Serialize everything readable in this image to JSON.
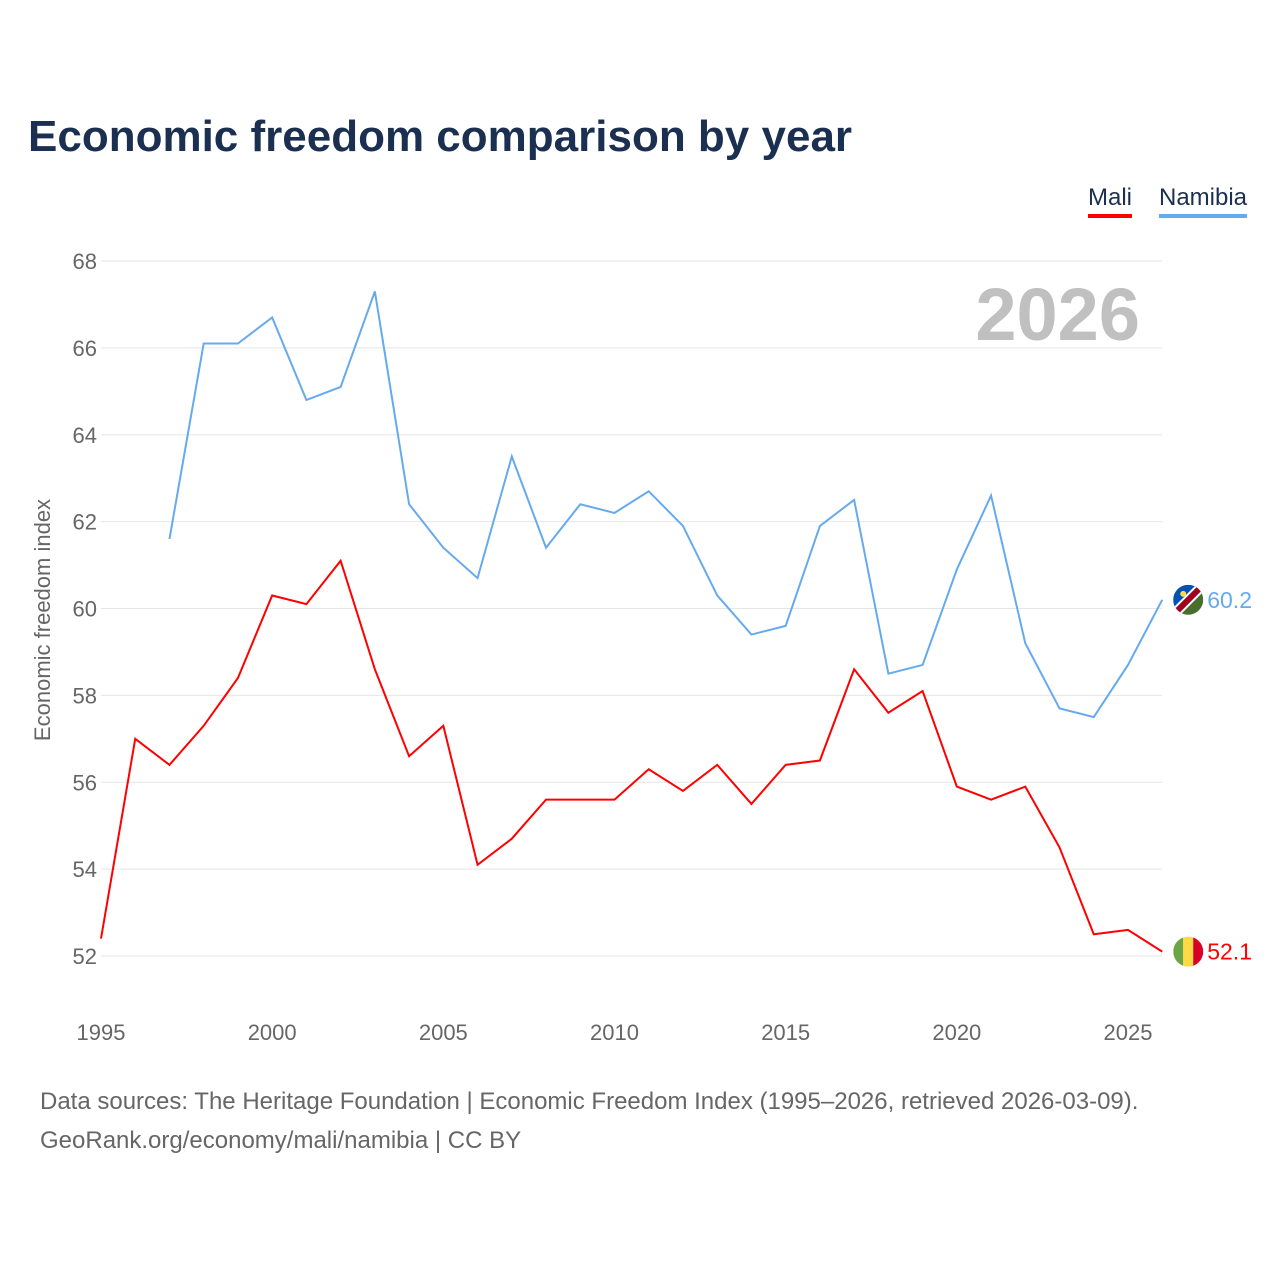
{
  "chart_data": {
    "type": "line",
    "title": "Economic freedom comparison by year",
    "ylabel": "Economic freedom index",
    "xlabel": "",
    "ylim": [
      52,
      68
    ],
    "xlim": [
      1995,
      2026
    ],
    "yticks": [
      52,
      54,
      56,
      58,
      60,
      62,
      64,
      66,
      68
    ],
    "xticks": [
      1995,
      2000,
      2005,
      2010,
      2015,
      2020,
      2025
    ],
    "grid": true,
    "legend_placement": "top-right",
    "year_label": "2026",
    "series": [
      {
        "name": "Mali",
        "color": "#ff0000",
        "start": 1995,
        "end_label": "52.1",
        "values": [
          52.4,
          57.0,
          56.4,
          57.3,
          58.4,
          60.3,
          60.1,
          61.1,
          58.6,
          56.6,
          57.3,
          54.1,
          54.7,
          55.6,
          55.6,
          55.6,
          56.3,
          55.8,
          56.4,
          55.5,
          56.4,
          56.5,
          58.6,
          57.6,
          58.1,
          55.9,
          55.6,
          55.9,
          54.5,
          52.5,
          52.6,
          52.1
        ]
      },
      {
        "name": "Namibia",
        "color": "#66aaee",
        "start": 1997,
        "end_label": "60.2",
        "values": [
          61.6,
          66.1,
          66.1,
          66.7,
          64.8,
          65.1,
          67.3,
          62.4,
          61.4,
          60.7,
          63.5,
          61.4,
          62.4,
          62.2,
          62.7,
          61.9,
          60.3,
          59.4,
          59.6,
          61.9,
          62.5,
          58.5,
          58.7,
          60.9,
          62.6,
          59.2,
          57.7,
          57.5,
          58.7,
          60.2
        ]
      }
    ]
  },
  "footer": {
    "line1": "Data sources: The Heritage Foundation | Economic Freedom Index (1995–2026, retrieved 2026-03-09).",
    "line2": "GeoRank.org/economy/mali/namibia | CC BY"
  }
}
